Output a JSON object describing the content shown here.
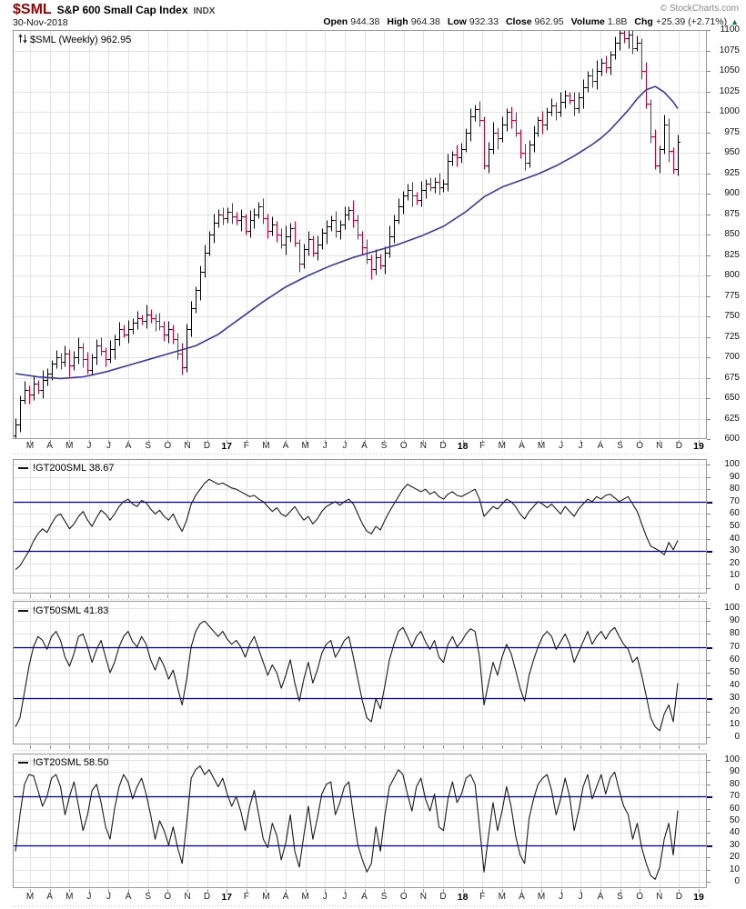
{
  "header": {
    "symbol": "$SML",
    "name": "S&P 600 Small Cap Index",
    "exchange_label": "INDX",
    "copyright": "© StockCharts.com",
    "date": "30-Nov-2018",
    "quote": [
      {
        "label": "Open",
        "value": "944.38"
      },
      {
        "label": "High",
        "value": "964.38"
      },
      {
        "label": "Low",
        "value": "932.33"
      },
      {
        "label": "Close",
        "value": "962.95"
      },
      {
        "label": "Volume",
        "value": "1.8B"
      },
      {
        "label": "Chg",
        "value": "+25.39 (+2.71%)"
      }
    ],
    "change_direction": "▲"
  },
  "colors": {
    "symbol_red": "#990000",
    "bar_up": "#000000",
    "bar_down": "#cc0033",
    "ma_blue": "#3737b2",
    "band_navy": "#000080",
    "grid": "#e3e3e3",
    "panel_border": "#999999",
    "change_green": "#007f3f",
    "indicator_line": "#1a1a1a"
  },
  "chart_data": [
    {
      "type": "ohlc",
      "title": "$SML (Weekly) 962.95",
      "legend_icon": "up-down-arrows",
      "ylim": [
        600,
        1100
      ],
      "y_tick_step": 25,
      "x_labels": [
        "M",
        "A",
        "M",
        "J",
        "J",
        "A",
        "S",
        "O",
        "N",
        "D",
        "17",
        "F",
        "M",
        "A",
        "M",
        "J",
        "J",
        "A",
        "S",
        "O",
        "N",
        "D",
        "18",
        "F",
        "M",
        "A",
        "M",
        "J",
        "J",
        "A",
        "S",
        "O",
        "N",
        "D",
        "19"
      ],
      "first_open": 605,
      "closes": [
        618,
        648,
        660,
        655,
        668,
        660,
        672,
        680,
        692,
        700,
        695,
        705,
        690,
        700,
        712,
        698,
        685,
        700,
        715,
        708,
        698,
        710,
        722,
        735,
        728,
        735,
        742,
        748,
        745,
        752,
        748,
        745,
        738,
        728,
        735,
        722,
        705,
        688,
        735,
        760,
        782,
        805,
        828,
        850,
        865,
        875,
        870,
        878,
        872,
        868,
        872,
        855,
        868,
        875,
        885,
        870,
        855,
        862,
        850,
        838,
        848,
        858,
        840,
        815,
        832,
        845,
        828,
        838,
        852,
        860,
        868,
        855,
        862,
        875,
        880,
        868,
        850,
        835,
        820,
        808,
        822,
        812,
        828,
        848,
        868,
        885,
        898,
        905,
        898,
        892,
        905,
        912,
        908,
        915,
        908,
        912,
        940,
        948,
        945,
        955,
        975,
        995,
        1003,
        990,
        935,
        955,
        975,
        968,
        985,
        1000,
        990,
        975,
        950,
        938,
        960,
        975,
        990,
        985,
        1000,
        1008,
        1000,
        1012,
        1020,
        1015,
        1005,
        1018,
        1030,
        1045,
        1038,
        1050,
        1060,
        1055,
        1070,
        1085,
        1097,
        1090,
        1095,
        1078,
        1085,
        1050,
        1010,
        970,
        935,
        955,
        985,
        952,
        930,
        963
      ],
      "wick_up_pattern": [
        8,
        5,
        11,
        6,
        9,
        4,
        12,
        7,
        5,
        9,
        6,
        10,
        5,
        8,
        13,
        6,
        9,
        5,
        7,
        10,
        4,
        11,
        6
      ],
      "wick_down_pattern": [
        6,
        9,
        5,
        12,
        7,
        4,
        10,
        6,
        8,
        5,
        9,
        6,
        13,
        5,
        8,
        10,
        5,
        7,
        9
      ],
      "ma": {
        "name": "moving-average",
        "anchors": [
          [
            0,
            680
          ],
          [
            5,
            676
          ],
          [
            10,
            674
          ],
          [
            15,
            676
          ],
          [
            20,
            682
          ],
          [
            25,
            690
          ],
          [
            30,
            698
          ],
          [
            35,
            706
          ],
          [
            40,
            714
          ],
          [
            45,
            728
          ],
          [
            50,
            748
          ],
          [
            55,
            768
          ],
          [
            60,
            786
          ],
          [
            65,
            800
          ],
          [
            70,
            812
          ],
          [
            75,
            822
          ],
          [
            80,
            830
          ],
          [
            85,
            838
          ],
          [
            90,
            848
          ],
          [
            95,
            860
          ],
          [
            100,
            878
          ],
          [
            104,
            896
          ],
          [
            108,
            908
          ],
          [
            112,
            916
          ],
          [
            116,
            924
          ],
          [
            120,
            934
          ],
          [
            124,
            946
          ],
          [
            128,
            960
          ],
          [
            130,
            968
          ],
          [
            132,
            978
          ],
          [
            134,
            990
          ],
          [
            136,
            1002
          ],
          [
            138,
            1016
          ],
          [
            140,
            1027
          ],
          [
            142,
            1031
          ],
          [
            144,
            1024
          ],
          [
            146,
            1012
          ],
          [
            147,
            1004
          ]
        ]
      }
    },
    {
      "type": "line",
      "title": "!GT200SML 38.67",
      "last_value": 38.67,
      "ylim": [
        0,
        100
      ],
      "y_tick_step": 10,
      "hlines": [
        70,
        30
      ],
      "values": [
        15,
        18,
        24,
        30,
        38,
        44,
        48,
        45,
        52,
        58,
        60,
        54,
        48,
        52,
        58,
        62,
        55,
        50,
        57,
        63,
        60,
        55,
        60,
        66,
        70,
        72,
        68,
        66,
        71,
        69,
        64,
        60,
        63,
        58,
        55,
        60,
        52,
        46,
        55,
        68,
        75,
        80,
        85,
        88,
        86,
        84,
        85,
        83,
        81,
        80,
        78,
        76,
        74,
        75,
        72,
        70,
        66,
        62,
        65,
        60,
        58,
        62,
        66,
        60,
        55,
        58,
        52,
        56,
        62,
        66,
        68,
        70,
        67,
        70,
        72,
        68,
        60,
        52,
        46,
        44,
        50,
        47,
        55,
        62,
        68,
        74,
        80,
        84,
        82,
        80,
        78,
        80,
        76,
        78,
        74,
        72,
        76,
        78,
        75,
        74,
        76,
        78,
        80,
        72,
        58,
        62,
        66,
        64,
        68,
        72,
        70,
        66,
        60,
        56,
        62,
        66,
        70,
        68,
        65,
        68,
        64,
        60,
        66,
        62,
        58,
        64,
        68,
        72,
        70,
        74,
        72,
        75,
        76,
        73,
        70,
        72,
        74,
        68,
        62,
        52,
        42,
        34,
        32,
        30,
        27,
        37,
        31,
        38.67
      ]
    },
    {
      "type": "line",
      "title": "!GT50SML 41.83",
      "last_value": 41.83,
      "ylim": [
        0,
        100
      ],
      "y_tick_step": 10,
      "hlines": [
        70,
        30
      ],
      "values": [
        8,
        15,
        35,
        55,
        70,
        78,
        75,
        68,
        78,
        82,
        75,
        62,
        55,
        65,
        78,
        80,
        70,
        58,
        68,
        75,
        62,
        50,
        58,
        70,
        78,
        82,
        74,
        70,
        78,
        72,
        60,
        52,
        62,
        55,
        45,
        52,
        38,
        25,
        45,
        70,
        82,
        88,
        90,
        86,
        82,
        78,
        82,
        76,
        72,
        75,
        70,
        62,
        72,
        78,
        68,
        58,
        48,
        56,
        50,
        38,
        48,
        60,
        42,
        28,
        45,
        58,
        42,
        52,
        65,
        72,
        75,
        62,
        68,
        75,
        78,
        62,
        45,
        28,
        15,
        12,
        30,
        22,
        40,
        60,
        72,
        82,
        85,
        78,
        70,
        78,
        82,
        74,
        68,
        75,
        62,
        58,
        72,
        78,
        70,
        74,
        80,
        84,
        82,
        62,
        25,
        42,
        58,
        48,
        62,
        72,
        65,
        52,
        38,
        28,
        48,
        60,
        70,
        78,
        82,
        78,
        68,
        74,
        80,
        72,
        58,
        66,
        74,
        82,
        72,
        78,
        82,
        76,
        82,
        85,
        78,
        72,
        68,
        58,
        62,
        48,
        32,
        15,
        8,
        5,
        18,
        25,
        12,
        41.83
      ]
    },
    {
      "type": "line",
      "title": "!GT20SML 58.50",
      "last_value": 58.5,
      "ylim": [
        0,
        100
      ],
      "y_tick_step": 10,
      "hlines": [
        70,
        30
      ],
      "values": [
        25,
        55,
        80,
        88,
        87,
        75,
        62,
        70,
        85,
        88,
        78,
        55,
        70,
        82,
        62,
        42,
        55,
        75,
        80,
        65,
        45,
        35,
        60,
        78,
        88,
        82,
        68,
        78,
        85,
        72,
        55,
        35,
        50,
        42,
        30,
        45,
        28,
        15,
        48,
        85,
        92,
        95,
        88,
        92,
        85,
        78,
        85,
        72,
        62,
        70,
        58,
        42,
        62,
        75,
        55,
        35,
        28,
        48,
        38,
        18,
        32,
        55,
        25,
        12,
        38,
        62,
        35,
        52,
        72,
        80,
        82,
        55,
        65,
        78,
        82,
        55,
        30,
        18,
        8,
        15,
        45,
        25,
        55,
        78,
        85,
        92,
        88,
        72,
        58,
        78,
        85,
        68,
        58,
        72,
        45,
        42,
        68,
        82,
        65,
        72,
        85,
        88,
        80,
        45,
        8,
        38,
        65,
        42,
        58,
        78,
        62,
        38,
        22,
        15,
        52,
        68,
        80,
        85,
        88,
        75,
        55,
        68,
        85,
        70,
        42,
        58,
        78,
        88,
        68,
        78,
        88,
        72,
        85,
        90,
        75,
        62,
        55,
        35,
        48,
        28,
        15,
        5,
        2,
        12,
        35,
        48,
        22,
        58.5
      ]
    }
  ]
}
